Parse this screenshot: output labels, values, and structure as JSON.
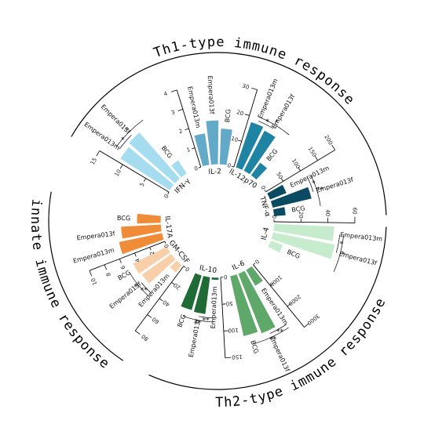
{
  "chart_data": {
    "type": "bar",
    "layout": "radial",
    "title": "",
    "groups": [
      {
        "label": "Th1-type immune response"
      },
      {
        "label": "Th2-type immune response"
      },
      {
        "label": "innate immune response"
      }
    ],
    "panels": [
      {
        "cytokine": "IFN-γ",
        "group": 0,
        "color": "#a6dcf0",
        "ticks": [
          "0",
          "5",
          "10",
          "15"
        ],
        "ymax": 15,
        "bars": [
          {
            "name": "Empera013m",
            "value": 11
          },
          {
            "name": "Empera013f",
            "value": 11.5
          },
          {
            "name": "BCG",
            "value": 3
          }
        ],
        "sig": [
          "*",
          "*"
        ]
      },
      {
        "cytokine": "IL-2",
        "group": 0,
        "color": "#63a9c8",
        "ticks": [
          "0",
          "1",
          "2",
          "3",
          "4"
        ],
        "ymax": 4,
        "bars": [
          {
            "name": "Empera013m",
            "value": 1.6
          },
          {
            "name": "Empera013f",
            "value": 2.2
          },
          {
            "name": "BCG",
            "value": 1.8
          }
        ],
        "sig": []
      },
      {
        "cytokine": "IL-12p70",
        "group": 0,
        "color": "#1f84a3",
        "ticks": [
          "0",
          "10",
          "20",
          "30"
        ],
        "ymax": 30,
        "bars": [
          {
            "name": "Empera013m",
            "value": 18
          },
          {
            "name": "Empera013f",
            "value": 17
          },
          {
            "name": "BCG",
            "value": 6
          }
        ],
        "sig": [
          "*",
          "*"
        ]
      },
      {
        "cytokine": "TNF-α",
        "group": 0,
        "color": "#0b4a63",
        "ticks": [
          "0",
          "50",
          "100",
          "150",
          "200"
        ],
        "ymax": 200,
        "bars": [
          {
            "name": "Empera013m",
            "value": 45
          },
          {
            "name": "Empera013f",
            "value": 100
          },
          {
            "name": "BCG",
            "value": 30
          }
        ],
        "sig": [
          "*",
          "**"
        ]
      },
      {
        "cytokine": "IL-4",
        "group": 1,
        "color": "#c7ebcd",
        "ticks": [
          "0",
          "20",
          "40",
          "60"
        ],
        "ymax": 60,
        "bars": [
          {
            "name": "Empera013m",
            "value": 45
          },
          {
            "name": "Empera013f",
            "value": 47
          },
          {
            "name": "BCG",
            "value": 10
          }
        ],
        "sig": [
          "*",
          "*"
        ]
      },
      {
        "cytokine": "IL-6",
        "group": 1,
        "color": "#5ea869",
        "ticks": [
          "0",
          "1000",
          "2000",
          "3000"
        ],
        "ymax": 3000,
        "bars": [
          {
            "name": "Empera013m",
            "value": 700
          },
          {
            "name": "Empera013f",
            "value": 2400
          },
          {
            "name": "BCG",
            "value": 2300
          }
        ],
        "sig": [
          "**",
          "**"
        ]
      },
      {
        "cytokine": "IL-10",
        "group": 1,
        "color": "#1e6b35",
        "ticks": [
          "0",
          "50",
          "100",
          "150"
        ],
        "ymax": 150,
        "bars": [
          {
            "name": "Empera013m",
            "value": 5
          },
          {
            "name": "Empera013f",
            "value": 70
          },
          {
            "name": "BCG",
            "value": 68
          }
        ],
        "sig": [
          "**",
          "**"
        ]
      },
      {
        "cytokine": "GM-CSF",
        "group": 2,
        "color": "#f8cfa8",
        "ticks": [
          "0",
          "20",
          "40",
          "60",
          "80"
        ],
        "ymax": 80,
        "bars": [
          {
            "name": "Empera013m",
            "value": 10
          },
          {
            "name": "Empera013f",
            "value": 36
          },
          {
            "name": "BCG",
            "value": 38
          }
        ],
        "sig": [
          "**",
          "*"
        ]
      },
      {
        "cytokine": "IL-17A",
        "group": 2,
        "color": "#f08c38",
        "ticks": [
          "0",
          "2",
          "4",
          "6",
          "8",
          "10"
        ],
        "ymax": 10,
        "bars": [
          {
            "name": "Empera013m",
            "value": 5.5
          },
          {
            "name": "Empera013f",
            "value": 5
          },
          {
            "name": "BCG",
            "value": 3
          }
        ],
        "sig": []
      }
    ]
  }
}
